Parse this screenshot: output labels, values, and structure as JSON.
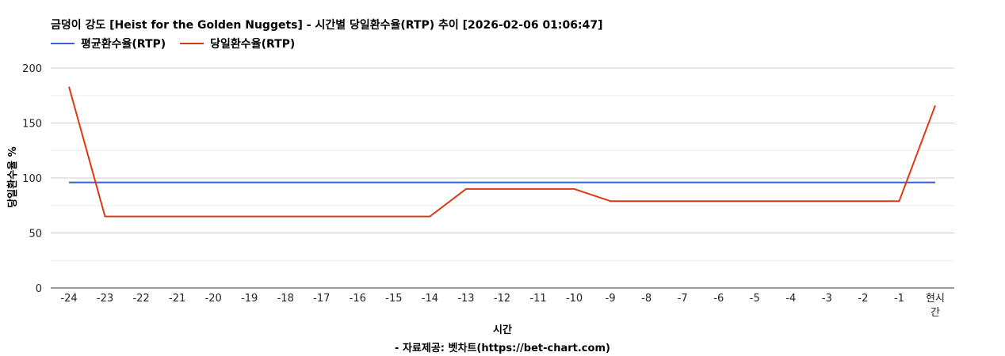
{
  "chart_data": {
    "type": "line",
    "title": "금덩이 강도 [Heist for the Golden Nuggets] - 시간별 당일환수율(RTP) 추이 [2026-02-06 01:06:47]",
    "xlabel": "시간",
    "ylabel": "당일환수율 %",
    "source": "- 자료제공: 벳차트(https://bet-chart.com)",
    "categories": [
      "-24",
      "-23",
      "-22",
      "-21",
      "-20",
      "-19",
      "-18",
      "-17",
      "-16",
      "-15",
      "-14",
      "-13",
      "-12",
      "-11",
      "-10",
      "-9",
      "-8",
      "-7",
      "-6",
      "-5",
      "-4",
      "-3",
      "-2",
      "-1",
      "현시간"
    ],
    "ylim": [
      0,
      200
    ],
    "yticks": [
      0,
      50,
      100,
      150,
      200
    ],
    "grid": true,
    "legend_position": "top-left",
    "series": [
      {
        "name": "평균환수율(RTP)",
        "color": "#3366cc",
        "values": [
          96,
          96,
          96,
          96,
          96,
          96,
          96,
          96,
          96,
          96,
          96,
          96,
          96,
          96,
          96,
          96,
          96,
          96,
          96,
          96,
          96,
          96,
          96,
          96,
          96
        ]
      },
      {
        "name": "당일환수율(RTP)",
        "color": "#dc3912",
        "values": [
          183,
          65,
          65,
          65,
          65,
          65,
          65,
          65,
          65,
          65,
          65,
          90,
          90,
          90,
          90,
          79,
          79,
          79,
          79,
          79,
          79,
          79,
          79,
          79,
          166
        ]
      }
    ]
  }
}
